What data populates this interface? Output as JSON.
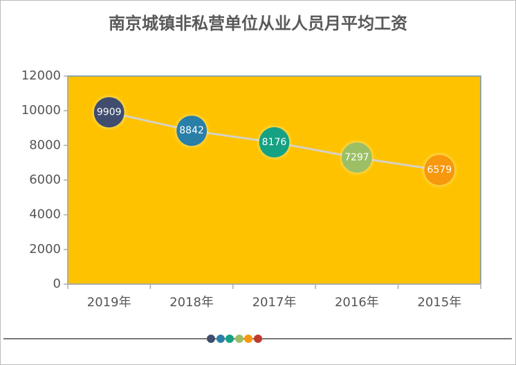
{
  "chart_data": {
    "type": "line",
    "title": "南京城镇非私营单位从业人员月平均工资",
    "categories": [
      "2019年",
      "2018年",
      "2017年",
      "2016年",
      "2015年"
    ],
    "values": [
      9909,
      8842,
      8176,
      7297,
      6579
    ],
    "point_colors": [
      "#3f4e6e",
      "#2c7fa8",
      "#16a183",
      "#9cbf66",
      "#f7980e"
    ],
    "line_color": "#d6d2c4",
    "plot_background": "#fec200",
    "ylim": [
      0,
      12000
    ],
    "yticks": [
      0,
      2000,
      4000,
      6000,
      8000,
      10000,
      12000
    ]
  }
}
